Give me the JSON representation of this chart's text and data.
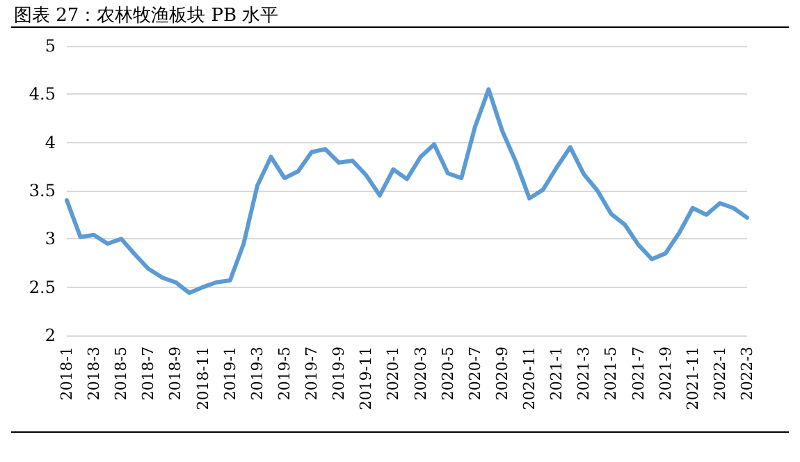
{
  "chart_data": {
    "type": "line",
    "title": "图表 27：农林牧渔板块 PB 水平",
    "categories": [
      "2018-1",
      null,
      "2018-3",
      null,
      "2018-5",
      null,
      "2018-7",
      null,
      "2018-9",
      null,
      "2018-11",
      null,
      "2019-1",
      null,
      "2019-3",
      null,
      "2019-5",
      null,
      "2019-7",
      null,
      "2019-9",
      null,
      "2019-11",
      null,
      "2020-1",
      null,
      "2020-3",
      null,
      "2020-5",
      null,
      "2020-7",
      null,
      "2020-9",
      null,
      "2020-11",
      null,
      "2021-1",
      null,
      "2021-3",
      null,
      "2021-5",
      null,
      "2021-7",
      null,
      "2021-9",
      null,
      "2021-11",
      null,
      "2022-1",
      null,
      "2022-3"
    ],
    "series": [
      {
        "color": "#5b9bd5",
        "values": [
          3.4,
          3.02,
          3.04,
          2.95,
          3.0,
          2.84,
          2.69,
          2.6,
          2.55,
          2.44,
          2.5,
          2.55,
          2.57,
          2.95,
          3.55,
          3.85,
          3.63,
          3.7,
          3.9,
          3.93,
          3.79,
          3.81,
          3.66,
          3.45,
          3.72,
          3.62,
          3.85,
          3.98,
          3.68,
          3.63,
          4.16,
          4.55,
          4.12,
          3.8,
          3.42,
          3.51,
          3.74,
          3.95,
          3.67,
          3.5,
          3.26,
          3.15,
          2.94,
          2.79,
          2.85,
          3.06,
          3.32,
          3.25,
          3.37,
          3.32,
          3.22
        ]
      }
    ],
    "ylim": [
      2,
      5
    ],
    "yticks": [
      2,
      2.5,
      3,
      3.5,
      4,
      4.5,
      5
    ],
    "grid": "y",
    "marker": "none",
    "line_style": "solid"
  }
}
